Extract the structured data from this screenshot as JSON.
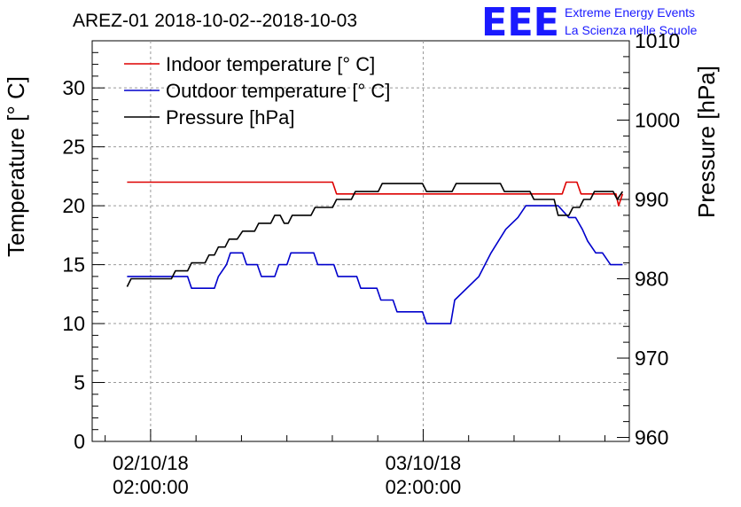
{
  "chart_data": {
    "type": "line",
    "title": "AREZ-01 2018-10-02--2018-10-03",
    "ylabel": "Temperature [° C]",
    "y2label": "Pressure [hPa]",
    "ylim": [
      0,
      34
    ],
    "y2lim": [
      959.5,
      1010
    ],
    "yticks": [
      "0",
      "5",
      "10",
      "15",
      "20",
      "25",
      "30"
    ],
    "y2ticks": [
      "960",
      "970",
      "980",
      "990",
      "1000",
      "1010"
    ],
    "xlim": [
      0,
      40
    ],
    "xticks": [
      {
        "x": 4.35,
        "date": "02/10/18",
        "time": "02:00:00"
      },
      {
        "x": 24.65,
        "date": "03/10/18",
        "time": "02:00:00"
      }
    ],
    "grid": true,
    "legend_position": "top-left",
    "colors": {
      "indoor": "#dd0000",
      "outdoor": "#0000cc",
      "pressure": "#000000"
    },
    "series": [
      {
        "key": "indoor",
        "name": "Indoor temperature [° C]",
        "axis": "left",
        "x": [
          2.6,
          17.9,
          18.2,
          35.0,
          35.3,
          36.1,
          36.4,
          39.0,
          39.2,
          39.5
        ],
        "values": [
          22,
          22,
          21,
          21,
          22,
          22,
          21,
          21,
          20,
          21
        ]
      },
      {
        "key": "outdoor",
        "name": "Outdoor temperature [° C]",
        "axis": "left",
        "x": [
          2.6,
          3.0,
          7.1,
          7.4,
          9.1,
          9.4,
          10.0,
          10.3,
          11.2,
          11.5,
          12.3,
          12.6,
          13.6,
          13.9,
          14.5,
          14.8,
          16.5,
          16.8,
          18.0,
          18.3,
          19.7,
          20.0,
          21.2,
          21.5,
          22.4,
          22.7,
          24.6,
          24.9,
          26.7,
          27.0,
          28.8,
          29.7,
          30.8,
          31.7,
          32.3,
          33.2,
          34.7,
          35.5,
          36.0,
          36.5,
          36.9,
          37.5,
          38.0,
          38.6,
          39.5
        ],
        "values": [
          14,
          14,
          14,
          13,
          13,
          14,
          15,
          16,
          16,
          15,
          15,
          14,
          14,
          15,
          15,
          16,
          16,
          15,
          15,
          14,
          14,
          13,
          13,
          12,
          12,
          11,
          11,
          10,
          10,
          12,
          14,
          16,
          18,
          19,
          20,
          20,
          20,
          19,
          19,
          18,
          17,
          16,
          16,
          15,
          15
        ]
      },
      {
        "key": "pressure",
        "name": "Pressure [hPa]",
        "axis": "right",
        "x": [
          2.6,
          2.9,
          5.9,
          6.2,
          7.1,
          7.4,
          8.4,
          8.7,
          9.1,
          9.4,
          9.9,
          10.2,
          10.8,
          11.2,
          12.1,
          12.4,
          13.3,
          13.6,
          14.0,
          14.3,
          14.6,
          14.9,
          16.3,
          16.6,
          17.9,
          18.2,
          19.3,
          19.6,
          21.3,
          21.6,
          24.6,
          24.9,
          26.8,
          27.1,
          30.4,
          30.7,
          32.6,
          32.9,
          34.4,
          34.7,
          35.5,
          35.8,
          36.3,
          36.6,
          37.1,
          37.4,
          38.8,
          39.1,
          39.5
        ],
        "values": [
          979,
          980,
          980,
          981,
          981,
          982,
          982,
          983,
          983,
          984,
          984,
          985,
          985,
          986,
          986,
          987,
          987,
          988,
          988,
          987,
          987,
          988,
          988,
          989,
          989,
          990,
          990,
          991,
          991,
          992,
          992,
          991,
          991,
          992,
          992,
          991,
          991,
          990,
          990,
          988,
          988,
          989,
          989,
          990,
          990,
          991,
          991,
          990,
          991
        ]
      }
    ]
  },
  "brand": {
    "logo": "EEE",
    "line1": "Extreme Energy Events",
    "line2": "La Scienza nelle Scuole"
  }
}
